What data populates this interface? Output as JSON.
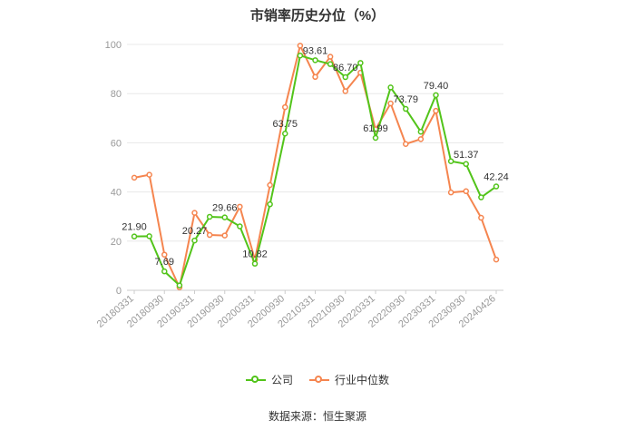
{
  "title": "市销率历史分位（%）",
  "source": "数据来源：恒生聚源",
  "legend": {
    "company": "公司",
    "industry": "行业中位数"
  },
  "colors": {
    "company": "#52c41a",
    "industry": "#f5854f",
    "grid": "#e8e8e8",
    "axis": "#999999",
    "text": "#333333"
  },
  "chart_data": {
    "type": "line",
    "title": "市销率历史分位（%）",
    "xlabel": "",
    "ylabel": "",
    "ylim": [
      0,
      100
    ],
    "yticks": [
      0,
      20,
      40,
      60,
      80,
      100
    ],
    "grid": true,
    "legend_position": "bottom",
    "x_tick_labels": [
      "20180331",
      "20180930",
      "20190331",
      "20190930",
      "20200331",
      "20200930",
      "20210331",
      "20210930",
      "20220331",
      "20220930",
      "20230331",
      "20230930",
      "20240426"
    ],
    "x": [
      "20180331",
      "20180630",
      "20180930",
      "20181231",
      "20190331",
      "20190630",
      "20190930",
      "20191231",
      "20200331",
      "20200630",
      "20200930",
      "20201231",
      "20210331",
      "20210630",
      "20210930",
      "20211231",
      "20220331",
      "20220630",
      "20220930",
      "20221231",
      "20230331",
      "20230630",
      "20230930",
      "20231231",
      "20240426"
    ],
    "series": [
      {
        "name": "公司",
        "values": [
          21.9,
          22.0,
          7.69,
          2.0,
          20.27,
          29.9,
          29.66,
          26.0,
          10.82,
          35.0,
          63.75,
          95.5,
          93.61,
          92.0,
          86.7,
          92.5,
          61.99,
          82.5,
          73.79,
          64.5,
          79.4,
          52.5,
          51.37,
          37.8,
          42.24
        ]
      },
      {
        "name": "行业中位数",
        "values": [
          45.8,
          47.0,
          14.5,
          1.2,
          31.5,
          22.5,
          22.3,
          34.0,
          12.5,
          42.8,
          74.5,
          99.5,
          86.8,
          95.0,
          81.0,
          88.5,
          65.5,
          76.0,
          59.5,
          61.5,
          73.0,
          39.8,
          40.3,
          29.5,
          12.5
        ]
      }
    ],
    "data_labels": [
      {
        "index": 0,
        "text": "21.90"
      },
      {
        "index": 2,
        "text": "7.69"
      },
      {
        "index": 4,
        "text": "20.27"
      },
      {
        "index": 6,
        "text": "29.66"
      },
      {
        "index": 8,
        "text": "10.82"
      },
      {
        "index": 10,
        "text": "63.75"
      },
      {
        "index": 12,
        "text": "93.61"
      },
      {
        "index": 14,
        "text": "86.70"
      },
      {
        "index": 16,
        "text": "61.99"
      },
      {
        "index": 18,
        "text": "73.79"
      },
      {
        "index": 20,
        "text": "79.40"
      },
      {
        "index": 22,
        "text": "51.37"
      },
      {
        "index": 24,
        "text": "42.24"
      }
    ]
  }
}
